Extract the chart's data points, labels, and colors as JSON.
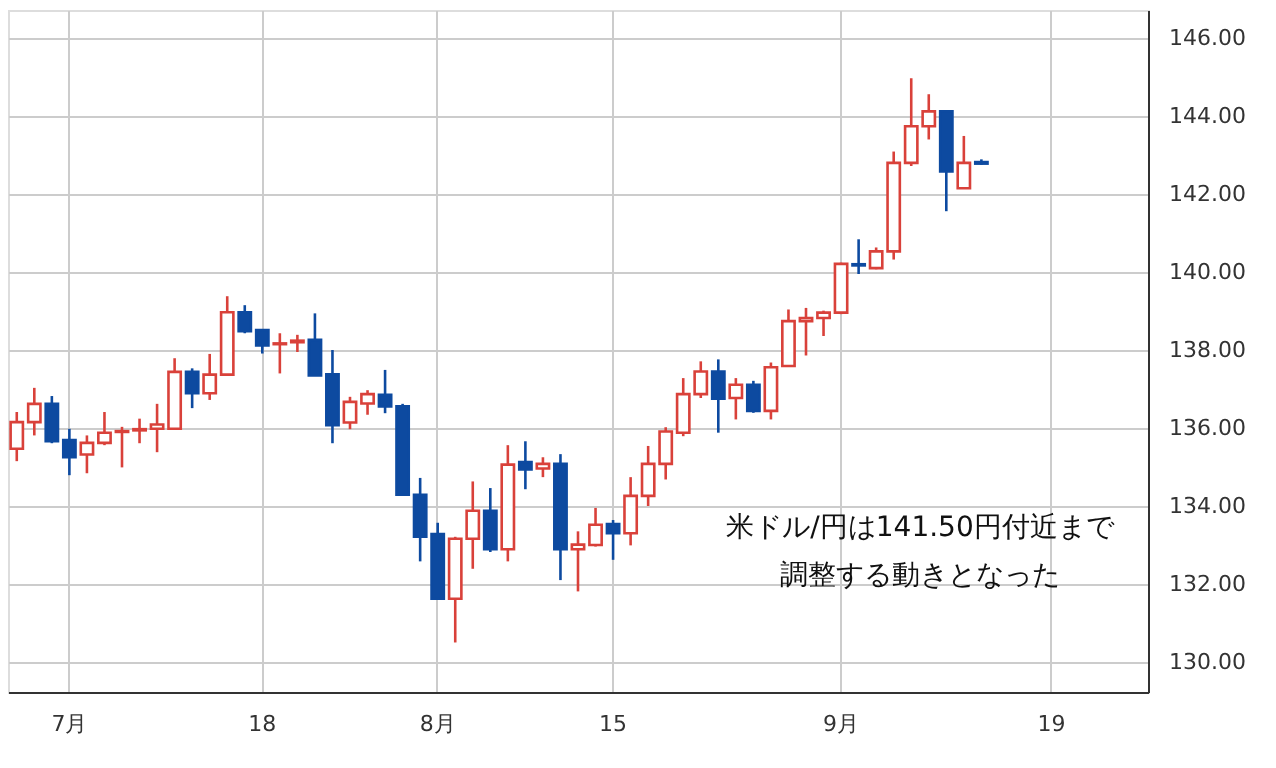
{
  "chart_data": {
    "type": "candlestick",
    "categories": [
      null,
      null,
      null,
      "7月",
      null,
      null,
      null,
      null,
      null,
      null,
      null,
      null,
      null,
      null,
      "18",
      null,
      null,
      null,
      null,
      null,
      null,
      null,
      null,
      null,
      "8月",
      null,
      null,
      null,
      null,
      null,
      null,
      null,
      null,
      null,
      "15",
      null,
      null,
      null,
      null,
      null,
      null,
      null,
      null,
      null,
      null,
      null,
      null,
      "9月",
      null,
      null,
      null,
      null,
      null,
      null,
      null,
      null,
      null,
      null,
      null,
      "19",
      null,
      null,
      null,
      null,
      null
    ],
    "ohlc": [
      [
        135.47,
        136.41,
        135.15,
        136.15
      ],
      [
        136.15,
        137.03,
        135.81,
        136.62
      ],
      [
        136.62,
        136.82,
        135.61,
        135.66
      ],
      [
        135.69,
        135.98,
        134.79,
        135.25
      ],
      [
        135.32,
        135.81,
        134.84,
        135.62
      ],
      [
        135.62,
        136.41,
        135.56,
        135.88
      ],
      [
        135.9,
        136.03,
        134.99,
        135.92
      ],
      [
        135.94,
        136.24,
        135.61,
        135.97
      ],
      [
        135.98,
        136.62,
        135.38,
        136.09
      ],
      [
        135.98,
        137.79,
        135.98,
        137.44
      ],
      [
        137.44,
        137.53,
        136.51,
        136.89
      ],
      [
        136.89,
        137.9,
        136.72,
        137.37
      ],
      [
        137.37,
        139.38,
        137.37,
        138.97
      ],
      [
        138.97,
        139.15,
        138.43,
        138.48
      ],
      [
        138.51,
        138.51,
        137.91,
        138.12
      ],
      [
        138.15,
        138.43,
        137.4,
        138.17
      ],
      [
        138.2,
        138.39,
        137.95,
        138.24
      ],
      [
        138.26,
        138.94,
        137.35,
        137.35
      ],
      [
        137.38,
        138.0,
        135.61,
        136.07
      ],
      [
        136.14,
        136.8,
        135.97,
        136.67
      ],
      [
        136.63,
        136.97,
        136.34,
        136.87
      ],
      [
        136.85,
        137.49,
        136.38,
        136.55
      ],
      [
        136.56,
        136.62,
        134.29,
        134.29
      ],
      [
        134.29,
        134.72,
        132.58,
        133.21
      ],
      [
        133.28,
        133.57,
        131.62,
        131.62
      ],
      [
        131.62,
        133.21,
        130.5,
        133.16
      ],
      [
        133.16,
        134.63,
        132.39,
        133.88
      ],
      [
        133.88,
        134.46,
        132.82,
        132.89
      ],
      [
        132.89,
        135.56,
        132.58,
        135.06
      ],
      [
        135.13,
        135.66,
        134.43,
        134.94
      ],
      [
        134.96,
        135.25,
        134.74,
        135.08
      ],
      [
        135.08,
        135.33,
        132.1,
        132.89
      ],
      [
        132.89,
        133.35,
        131.81,
        133.01
      ],
      [
        133.0,
        133.95,
        132.96,
        133.52
      ],
      [
        133.54,
        133.64,
        132.62,
        133.3
      ],
      [
        133.3,
        134.74,
        132.99,
        134.26
      ],
      [
        134.26,
        135.54,
        134.0,
        135.08
      ],
      [
        135.08,
        136.02,
        134.68,
        135.91
      ],
      [
        135.88,
        137.28,
        135.79,
        136.87
      ],
      [
        136.87,
        137.71,
        136.77,
        137.45
      ],
      [
        137.45,
        137.76,
        135.88,
        136.75
      ],
      [
        136.77,
        137.28,
        136.22,
        137.11
      ],
      [
        137.11,
        137.21,
        136.39,
        136.44
      ],
      [
        136.44,
        137.68,
        136.22,
        137.56
      ],
      [
        137.59,
        139.04,
        137.59,
        138.74
      ],
      [
        138.74,
        139.08,
        137.86,
        138.82
      ],
      [
        138.82,
        139.01,
        138.36,
        138.96
      ],
      [
        138.96,
        140.24,
        138.92,
        140.21
      ],
      [
        140.2,
        140.84,
        139.95,
        140.17
      ],
      [
        140.1,
        140.63,
        140.07,
        140.53
      ],
      [
        140.53,
        143.09,
        140.32,
        142.8
      ],
      [
        142.8,
        144.97,
        142.72,
        143.74
      ],
      [
        143.74,
        144.56,
        143.4,
        144.12
      ],
      [
        144.12,
        144.12,
        141.56,
        142.58
      ],
      [
        142.15,
        143.49,
        142.15,
        142.8
      ],
      [
        142.82,
        142.89,
        142.75,
        142.78
      ],
      null,
      null,
      null,
      null,
      null,
      null,
      null,
      null,
      null
    ],
    "colors": [
      "#d9413a",
      "#d9413a",
      "#0d4aa0",
      "#0d4aa0",
      "#d9413a",
      "#d9413a",
      "#d9413a",
      "#d9413a",
      "#d9413a",
      "#d9413a",
      "#0d4aa0",
      "#d9413a",
      "#d9413a",
      "#0d4aa0",
      "#0d4aa0",
      "#d9413a",
      "#d9413a",
      "#0d4aa0",
      "#0d4aa0",
      "#d9413a",
      "#d9413a",
      "#0d4aa0",
      "#0d4aa0",
      "#0d4aa0",
      "#0d4aa0",
      "#d9413a",
      "#d9413a",
      "#0d4aa0",
      "#d9413a",
      "#0d4aa0",
      "#d9413a",
      "#0d4aa0",
      "#d9413a",
      "#d9413a",
      "#0d4aa0",
      "#d9413a",
      "#d9413a",
      "#d9413a",
      "#d9413a",
      "#d9413a",
      "#0d4aa0",
      "#d9413a",
      "#0d4aa0",
      "#d9413a",
      "#d9413a",
      "#d9413a",
      "#d9413a",
      "#d9413a",
      "#0d4aa0",
      "#d9413a",
      "#d9413a",
      "#d9413a",
      "#d9413a",
      "#0d4aa0",
      "#d9413a",
      "#0d4aa0",
      null,
      null,
      null,
      null,
      null,
      null,
      null,
      null,
      null
    ],
    "ylim": [
      129.23,
      146.72
    ],
    "yticks": [
      {
        "value": 130,
        "label": "130.00"
      },
      {
        "value": 132,
        "label": "132.00"
      },
      {
        "value": 134,
        "label": "134.00"
      },
      {
        "value": 136,
        "label": "136.00"
      },
      {
        "value": 138,
        "label": "138.00"
      },
      {
        "value": 140,
        "label": "140.00"
      },
      {
        "value": 142,
        "label": "142.00"
      },
      {
        "value": 144,
        "label": "144.00"
      },
      {
        "value": 146,
        "label": "146.00"
      }
    ],
    "grid": true,
    "annotations": [
      "米ドル/円は141.50円付近まで調整する動きとなった"
    ]
  }
}
